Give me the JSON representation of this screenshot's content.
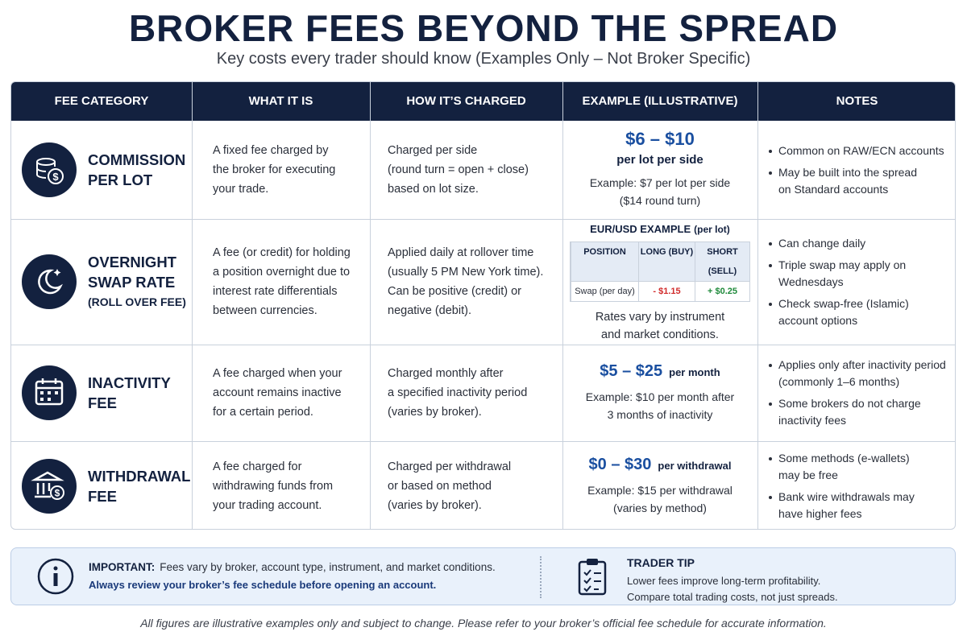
{
  "header": {
    "title": "BROKER FEES BEYOND THE SPREAD",
    "subtitle": "Key costs every trader should know (Examples Only – Not Broker Specific)"
  },
  "table": {
    "columns": [
      "FEE CATEGORY",
      "WHAT IT IS",
      "HOW IT’S CHARGED",
      "EXAMPLE (ILLUSTRATIVE)",
      "NOTES"
    ],
    "rows": [
      {
        "category": [
          "COMMISSION",
          "PER LOT"
        ],
        "what": [
          "A fixed fee charged by",
          "the broker for executing",
          "your trade."
        ],
        "how": [
          "Charged per side",
          "(round turn = open + close)",
          "based on lot size."
        ],
        "example": {
          "amount": "$6 – $10",
          "unit": "per lot per side",
          "detail": [
            "Example: $7 per lot per side",
            "($14 round turn)"
          ]
        },
        "notes": [
          [
            "Common on RAW/ECN accounts"
          ],
          [
            "May be built into the spread",
            "on Standard accounts"
          ]
        ]
      },
      {
        "category": [
          "OVERNIGHT",
          "SWAP RATE",
          "(ROLL OVER FEE)"
        ],
        "what": [
          "A fee (or credit) for holding",
          "a position overnight due to",
          "interest rate differentials",
          "between currencies."
        ],
        "how": [
          "Applied daily at rollover time",
          "(usually 5 PM New York time).",
          "Can be positive (credit) or",
          "negative (debit)."
        ],
        "example": {
          "heading": "EUR/USD EXAMPLE",
          "heading_note": "(per lot)",
          "swap_table": {
            "columns": [
              "POSITION",
              "LONG (BUY)",
              "SHORT (SELL)"
            ],
            "row": [
              "Swap (per day)",
              "- $1.15",
              "+ $0.25"
            ]
          },
          "detail": [
            "Rates vary by instrument",
            "and market conditions."
          ]
        },
        "notes": [
          [
            "Can change daily"
          ],
          [
            "Triple swap may apply on",
            "Wednesdays"
          ],
          [
            "Check swap-free (Islamic)",
            "account options"
          ]
        ]
      },
      {
        "category": [
          "INACTIVITY FEE"
        ],
        "what": [
          "A fee charged when your",
          "account remains inactive",
          "for a certain period."
        ],
        "how": [
          "Charged monthly after",
          "a specified inactivity period",
          "(varies by broker)."
        ],
        "example": {
          "amount": "$5 – $25",
          "unit": "per month",
          "detail": [
            "Example: $10 per month after",
            "3 months of inactivity"
          ]
        },
        "notes": [
          [
            "Applies only after inactivity period",
            "(commonly 1–6 months)"
          ],
          [
            "Some brokers do not charge",
            "inactivity fees"
          ]
        ]
      },
      {
        "category": [
          "WITHDRAWAL FEE"
        ],
        "what": [
          "A fee charged for",
          "withdrawing funds from",
          "your trading account."
        ],
        "how": [
          "Charged per withdrawal",
          "or based on method",
          "(varies by broker)."
        ],
        "example": {
          "amount": "$0 – $30",
          "unit": "per withdrawal",
          "detail": [
            "Example: $15 per withdrawal",
            "(varies by method)"
          ]
        },
        "notes": [
          [
            "Some methods (e-wallets)",
            "may be free"
          ],
          [
            "Bank wire withdrawals may",
            "have higher fees"
          ]
        ]
      }
    ]
  },
  "important": {
    "label": "IMPORTANT:",
    "text": "Fees vary by broker, account type, instrument, and market conditions.",
    "emphasis": "Always review your broker’s fee schedule before opening an account."
  },
  "tip": {
    "title": "TRADER TIP",
    "lines": [
      "Lower fees improve long-term profitability.",
      "Compare total trading costs, not just spreads."
    ]
  },
  "footer": "All figures are illustrative examples only and subject to change. Please refer to your broker’s official fee schedule for accurate information."
}
